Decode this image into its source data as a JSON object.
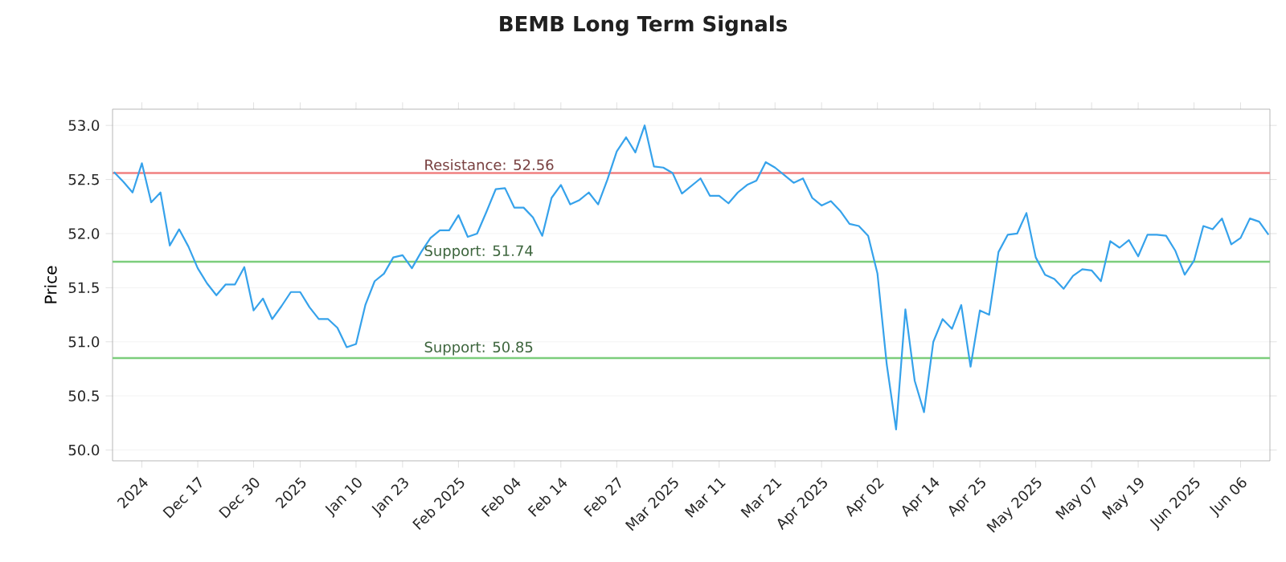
{
  "chart_data": {
    "type": "line",
    "title": "BEMB Long Term Signals",
    "ylabel": "Price",
    "categories": [
      null,
      null,
      null,
      "2024",
      null,
      null,
      null,
      null,
      null,
      "Dec 17",
      null,
      null,
      null,
      null,
      null,
      "Dec 30",
      null,
      null,
      null,
      null,
      "2025",
      null,
      null,
      null,
      null,
      null,
      "Jan 10",
      null,
      null,
      null,
      null,
      "Jan 23",
      null,
      null,
      null,
      null,
      null,
      "Feb 2025",
      null,
      null,
      null,
      null,
      null,
      "Feb 04",
      null,
      null,
      null,
      null,
      "Feb 14",
      null,
      null,
      null,
      null,
      null,
      "Feb 27",
      null,
      null,
      null,
      null,
      null,
      "Mar 2025",
      null,
      null,
      null,
      null,
      "Mar 11",
      null,
      null,
      null,
      null,
      null,
      "Mar 21",
      null,
      null,
      null,
      null,
      "Apr 2025",
      null,
      null,
      null,
      null,
      null,
      "Apr 02",
      null,
      null,
      null,
      null,
      null,
      "Apr 14",
      null,
      null,
      null,
      null,
      "Apr 25",
      null,
      null,
      null,
      null,
      null,
      "May 2025",
      null,
      null,
      null,
      null,
      null,
      "May 07",
      null,
      null,
      null,
      null,
      "May 19",
      null,
      null,
      null,
      null,
      null,
      "Jun 2025",
      null,
      null,
      null,
      null,
      "Jun 06",
      null,
      null,
      null
    ],
    "series": [
      {
        "color": "#36a2eb",
        "values": [
          52.57,
          52.48,
          52.38,
          52.65,
          52.29,
          52.38,
          51.89,
          52.04,
          51.88,
          51.68,
          51.54,
          51.43,
          51.53,
          51.53,
          51.69,
          51.29,
          51.4,
          51.21,
          51.33,
          51.46,
          51.46,
          51.32,
          51.21,
          51.21,
          51.13,
          50.95,
          50.98,
          51.34,
          51.56,
          51.63,
          51.78,
          51.8,
          51.68,
          51.83,
          51.96,
          52.03,
          52.03,
          52.17,
          51.97,
          52.0,
          52.2,
          52.41,
          52.42,
          52.24,
          52.24,
          52.15,
          51.98,
          52.33,
          52.45,
          52.27,
          52.31,
          52.38,
          52.27,
          52.5,
          52.76,
          52.89,
          52.75,
          53.0,
          52.62,
          52.61,
          52.56,
          52.37,
          52.44,
          52.51,
          52.35,
          52.35,
          52.28,
          52.38,
          52.45,
          52.49,
          52.66,
          52.61,
          52.54,
          52.47,
          52.51,
          52.33,
          52.26,
          52.3,
          52.21,
          52.09,
          52.07,
          51.98,
          51.63,
          50.79,
          50.19,
          51.3,
          50.64,
          50.35,
          51.0,
          51.21,
          51.12,
          51.34,
          50.77,
          51.29,
          51.25,
          51.83,
          51.99,
          52.0,
          52.19,
          51.78,
          51.62,
          51.58,
          51.49,
          51.61,
          51.67,
          51.66,
          51.56,
          51.93,
          51.87,
          51.94,
          51.79,
          51.99,
          51.99,
          51.98,
          51.84,
          51.62,
          51.75,
          52.07,
          52.04,
          52.14,
          51.9,
          51.96,
          52.14,
          52.11,
          51.99
        ]
      }
    ],
    "ylim": [
      49.9,
      53.15
    ],
    "yticks": [
      {
        "value": 50,
        "label": "50.0"
      },
      {
        "value": 50.5,
        "label": "50.5"
      },
      {
        "value": 51,
        "label": "51.0"
      },
      {
        "value": 51.5,
        "label": "51.5"
      },
      {
        "value": 52,
        "label": "52.0"
      },
      {
        "value": 52.5,
        "label": "52.5"
      },
      {
        "value": 53,
        "label": "53.0"
      }
    ],
    "grid": "y",
    "marker": "none",
    "line_style": "solid",
    "legend": false,
    "ref_lines": [
      {
        "axis": "y",
        "value": 52.56,
        "label": "Resistance: 52.56",
        "color": "#f08080"
      },
      {
        "axis": "y",
        "value": 51.74,
        "label": "Support: 51.74",
        "color": "#7ccd7c"
      },
      {
        "axis": "y",
        "value": 50.85,
        "label": "Support: 50.85",
        "color": "#7ccd7c"
      }
    ]
  }
}
